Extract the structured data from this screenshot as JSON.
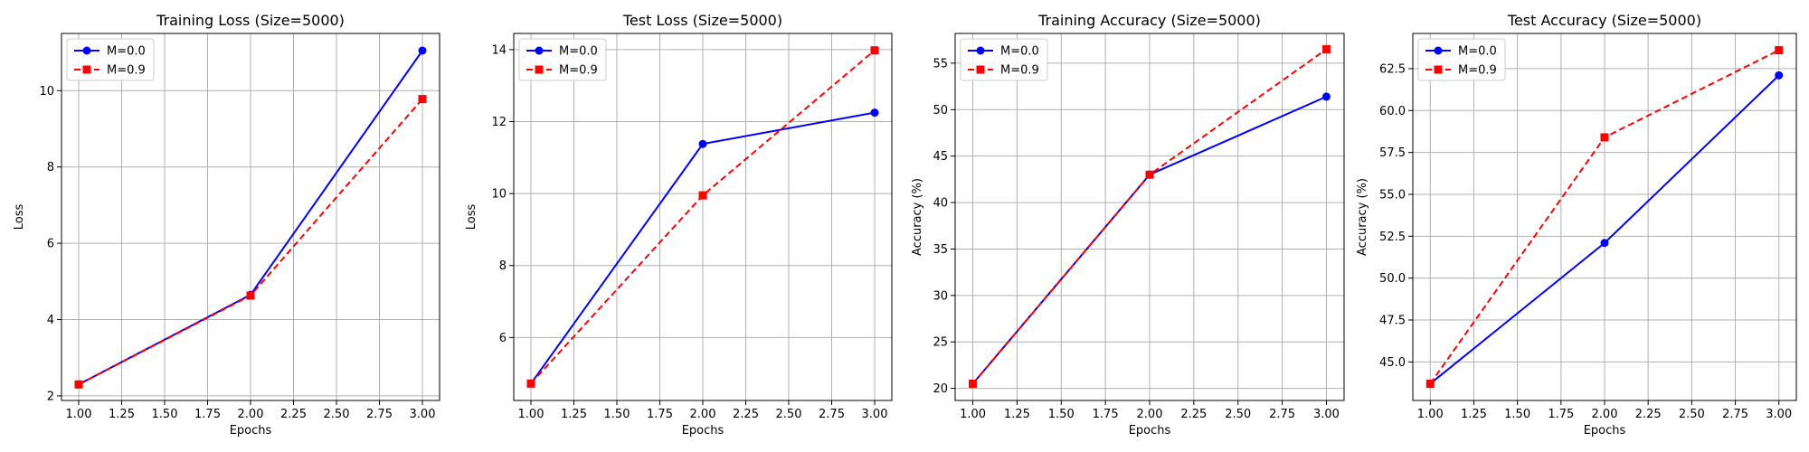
{
  "colors": {
    "m0": "#0000ff",
    "m9": "#ff0000",
    "grid": "#b0b0b0",
    "axis": "#000000"
  },
  "chart_data": [
    {
      "type": "line",
      "title": "Training Loss (Size=5000)",
      "xlabel": "Epochs",
      "ylabel": "Loss",
      "x": [
        1,
        2,
        3
      ],
      "xlim": [
        0.9,
        3.1
      ],
      "ylim": [
        1.88,
        11.5
      ],
      "xticks": [
        "1.00",
        "1.25",
        "1.50",
        "1.75",
        "2.00",
        "2.25",
        "2.50",
        "2.75",
        "3.00"
      ],
      "yticks": [
        "2",
        "4",
        "6",
        "8",
        "10"
      ],
      "grid": true,
      "legend": "upper-left",
      "series": [
        {
          "name": "M=0.0",
          "values": [
            2.3,
            4.65,
            11.05
          ],
          "color": "#0000ff",
          "style": "solid",
          "marker": "circle"
        },
        {
          "name": "M=0.9",
          "values": [
            2.3,
            4.63,
            9.78
          ],
          "color": "#ff0000",
          "style": "dashed",
          "marker": "square"
        }
      ]
    },
    {
      "type": "line",
      "title": "Test Loss (Size=5000)",
      "xlabel": "Epochs",
      "ylabel": "Loss",
      "x": [
        1,
        2,
        3
      ],
      "xlim": [
        0.9,
        3.1
      ],
      "ylim": [
        4.25,
        14.45
      ],
      "xticks": [
        "1.00",
        "1.25",
        "1.50",
        "1.75",
        "2.00",
        "2.25",
        "2.50",
        "2.75",
        "3.00"
      ],
      "yticks": [
        "6",
        "8",
        "10",
        "12",
        "14"
      ],
      "grid": true,
      "legend": "upper-left",
      "series": [
        {
          "name": "M=0.0",
          "values": [
            4.72,
            11.38,
            12.25
          ],
          "color": "#0000ff",
          "style": "solid",
          "marker": "circle"
        },
        {
          "name": "M=0.9",
          "values": [
            4.72,
            9.95,
            13.98
          ],
          "color": "#ff0000",
          "style": "dashed",
          "marker": "square"
        }
      ]
    },
    {
      "type": "line",
      "title": "Training Accuracy (Size=5000)",
      "xlabel": "Epochs",
      "ylabel": "Accuracy (%)",
      "x": [
        1,
        2,
        3
      ],
      "xlim": [
        0.9,
        3.1
      ],
      "ylim": [
        18.7,
        58.2
      ],
      "xticks": [
        "1.00",
        "1.25",
        "1.50",
        "1.75",
        "2.00",
        "2.25",
        "2.50",
        "2.75",
        "3.00"
      ],
      "yticks": [
        "20",
        "25",
        "30",
        "35",
        "40",
        "45",
        "50",
        "55"
      ],
      "grid": true,
      "legend": "upper-left",
      "series": [
        {
          "name": "M=0.0",
          "values": [
            20.5,
            43.0,
            51.4
          ],
          "color": "#0000ff",
          "style": "solid",
          "marker": "circle"
        },
        {
          "name": "M=0.9",
          "values": [
            20.5,
            43.0,
            56.5
          ],
          "color": "#ff0000",
          "style": "dashed",
          "marker": "square"
        }
      ]
    },
    {
      "type": "line",
      "title": "Test Accuracy (Size=5000)",
      "xlabel": "Epochs",
      "ylabel": "Accuracy (%)",
      "x": [
        1,
        2,
        3
      ],
      "xlim": [
        0.9,
        3.1
      ],
      "ylim": [
        42.7,
        64.6
      ],
      "xticks": [
        "1.00",
        "1.25",
        "1.50",
        "1.75",
        "2.00",
        "2.25",
        "2.50",
        "2.75",
        "3.00"
      ],
      "yticks": [
        "45.0",
        "47.5",
        "50.0",
        "52.5",
        "55.0",
        "57.5",
        "60.0",
        "62.5"
      ],
      "grid": true,
      "legend": "upper-left",
      "series": [
        {
          "name": "M=0.0",
          "values": [
            43.7,
            52.1,
            62.1
          ],
          "color": "#0000ff",
          "style": "solid",
          "marker": "circle"
        },
        {
          "name": "M=0.9",
          "values": [
            43.7,
            58.4,
            63.6
          ],
          "color": "#ff0000",
          "style": "dashed",
          "marker": "square"
        }
      ]
    }
  ]
}
